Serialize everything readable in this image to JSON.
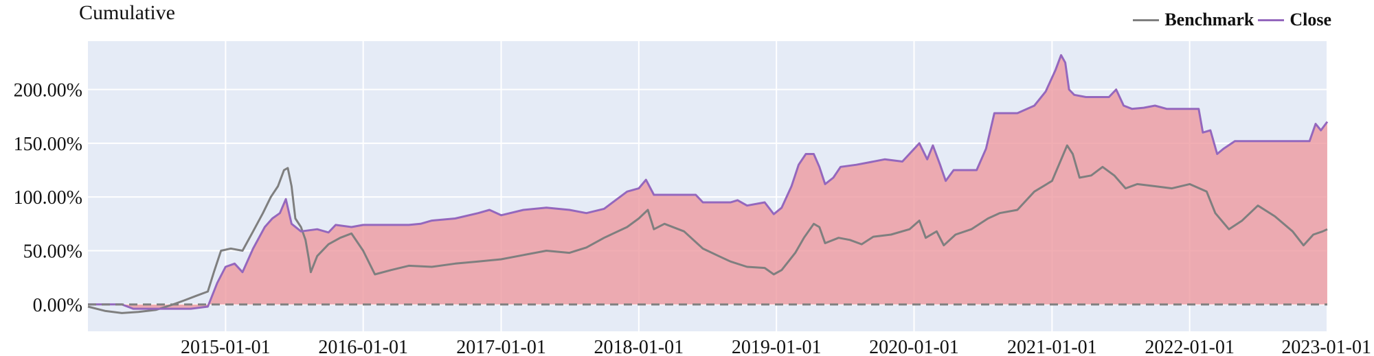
{
  "chart_data": {
    "type": "area",
    "title": "Cumulative",
    "x_ticks": [
      "2015-01-01",
      "2016-01-01",
      "2017-01-01",
      "2018-01-01",
      "2019-01-01",
      "2020-01-01",
      "2021-01-01",
      "2022-01-01",
      "2023-01-01"
    ],
    "y_ticks": [
      "0.00%",
      "50.00%",
      "100.00%",
      "150.00%",
      "200.00%"
    ],
    "y_tick_values": [
      0,
      50,
      100,
      150,
      200
    ],
    "xlim": [
      "2014-01-01",
      "2023-01-01"
    ],
    "ylim": [
      -25,
      245
    ],
    "grid": true,
    "legend_position": "top-right",
    "series": [
      {
        "name": "Benchmark",
        "color": "#7f7f7f",
        "points": [
          [
            "2014-01-01",
            -2
          ],
          [
            "2014-02-15",
            -6
          ],
          [
            "2014-04-01",
            -8
          ],
          [
            "2014-05-15",
            -7
          ],
          [
            "2014-07-01",
            -5
          ],
          [
            "2014-08-15",
            0
          ],
          [
            "2014-09-15",
            4
          ],
          [
            "2014-10-15",
            8
          ],
          [
            "2014-11-15",
            12
          ],
          [
            "2014-12-01",
            30
          ],
          [
            "2014-12-20",
            50
          ],
          [
            "2015-01-15",
            52
          ],
          [
            "2015-02-15",
            50
          ],
          [
            "2015-03-15",
            68
          ],
          [
            "2015-04-10",
            85
          ],
          [
            "2015-05-01",
            100
          ],
          [
            "2015-05-20",
            110
          ],
          [
            "2015-06-05",
            125
          ],
          [
            "2015-06-15",
            127
          ],
          [
            "2015-06-25",
            110
          ],
          [
            "2015-07-05",
            80
          ],
          [
            "2015-07-20",
            72
          ],
          [
            "2015-08-01",
            60
          ],
          [
            "2015-08-10",
            42
          ],
          [
            "2015-08-15",
            30
          ],
          [
            "2015-09-01",
            45
          ],
          [
            "2015-10-01",
            56
          ],
          [
            "2015-11-01",
            62
          ],
          [
            "2015-12-01",
            66
          ],
          [
            "2016-01-01",
            50
          ],
          [
            "2016-02-01",
            28
          ],
          [
            "2016-03-15",
            32
          ],
          [
            "2016-05-01",
            36
          ],
          [
            "2016-07-01",
            35
          ],
          [
            "2016-09-01",
            38
          ],
          [
            "2016-11-01",
            40
          ],
          [
            "2017-01-01",
            42
          ],
          [
            "2017-03-01",
            46
          ],
          [
            "2017-05-01",
            50
          ],
          [
            "2017-07-01",
            48
          ],
          [
            "2017-08-15",
            53
          ],
          [
            "2017-10-01",
            62
          ],
          [
            "2017-12-01",
            72
          ],
          [
            "2018-01-01",
            80
          ],
          [
            "2018-01-25",
            88
          ],
          [
            "2018-02-10",
            70
          ],
          [
            "2018-03-10",
            75
          ],
          [
            "2018-05-01",
            68
          ],
          [
            "2018-06-20",
            52
          ],
          [
            "2018-08-01",
            45
          ],
          [
            "2018-09-01",
            40
          ],
          [
            "2018-10-15",
            35
          ],
          [
            "2018-12-01",
            34
          ],
          [
            "2018-12-25",
            28
          ],
          [
            "2019-01-15",
            32
          ],
          [
            "2019-02-20",
            48
          ],
          [
            "2019-03-15",
            62
          ],
          [
            "2019-04-10",
            75
          ],
          [
            "2019-04-25",
            72
          ],
          [
            "2019-05-10",
            57
          ],
          [
            "2019-06-15",
            62
          ],
          [
            "2019-07-15",
            60
          ],
          [
            "2019-08-15",
            56
          ],
          [
            "2019-09-15",
            63
          ],
          [
            "2019-11-01",
            65
          ],
          [
            "2019-12-20",
            70
          ],
          [
            "2020-01-15",
            78
          ],
          [
            "2020-02-01",
            62
          ],
          [
            "2020-03-01",
            68
          ],
          [
            "2020-03-20",
            55
          ],
          [
            "2020-04-20",
            65
          ],
          [
            "2020-06-01",
            70
          ],
          [
            "2020-07-15",
            80
          ],
          [
            "2020-08-15",
            85
          ],
          [
            "2020-10-01",
            88
          ],
          [
            "2020-11-15",
            105
          ],
          [
            "2021-01-01",
            115
          ],
          [
            "2021-02-10",
            148
          ],
          [
            "2021-02-25",
            140
          ],
          [
            "2021-03-15",
            118
          ],
          [
            "2021-04-15",
            120
          ],
          [
            "2021-05-15",
            128
          ],
          [
            "2021-06-15",
            120
          ],
          [
            "2021-07-15",
            108
          ],
          [
            "2021-08-15",
            112
          ],
          [
            "2021-10-01",
            110
          ],
          [
            "2021-11-15",
            108
          ],
          [
            "2022-01-01",
            112
          ],
          [
            "2022-02-15",
            105
          ],
          [
            "2022-03-10",
            85
          ],
          [
            "2022-04-15",
            70
          ],
          [
            "2022-05-20",
            78
          ],
          [
            "2022-07-01",
            92
          ],
          [
            "2022-08-15",
            82
          ],
          [
            "2022-10-01",
            68
          ],
          [
            "2022-10-30",
            55
          ],
          [
            "2022-11-25",
            65
          ],
          [
            "2022-12-20",
            68
          ],
          [
            "2023-01-01",
            70
          ]
        ]
      },
      {
        "name": "Close",
        "color": "#9467bd",
        "points": [
          [
            "2014-01-01",
            0
          ],
          [
            "2014-04-01",
            0
          ],
          [
            "2014-05-01",
            -4
          ],
          [
            "2014-10-01",
            -4
          ],
          [
            "2014-11-15",
            -2
          ],
          [
            "2014-12-10",
            20
          ],
          [
            "2015-01-01",
            35
          ],
          [
            "2015-01-25",
            38
          ],
          [
            "2015-02-15",
            30
          ],
          [
            "2015-03-15",
            52
          ],
          [
            "2015-04-15",
            72
          ],
          [
            "2015-05-05",
            80
          ],
          [
            "2015-05-25",
            85
          ],
          [
            "2015-06-10",
            98
          ],
          [
            "2015-06-25",
            75
          ],
          [
            "2015-07-20",
            68
          ],
          [
            "2015-09-01",
            70
          ],
          [
            "2015-10-01",
            67
          ],
          [
            "2015-10-20",
            74
          ],
          [
            "2015-12-01",
            72
          ],
          [
            "2016-01-01",
            74
          ],
          [
            "2016-05-01",
            74
          ],
          [
            "2016-06-01",
            75
          ],
          [
            "2016-07-01",
            78
          ],
          [
            "2016-09-01",
            80
          ],
          [
            "2016-11-01",
            85
          ],
          [
            "2016-12-01",
            88
          ],
          [
            "2017-01-01",
            83
          ],
          [
            "2017-03-01",
            88
          ],
          [
            "2017-05-01",
            90
          ],
          [
            "2017-07-01",
            88
          ],
          [
            "2017-08-15",
            85
          ],
          [
            "2017-10-01",
            89
          ],
          [
            "2017-12-01",
            105
          ],
          [
            "2018-01-01",
            108
          ],
          [
            "2018-01-20",
            116
          ],
          [
            "2018-02-10",
            102
          ],
          [
            "2018-06-01",
            102
          ],
          [
            "2018-06-20",
            95
          ],
          [
            "2018-09-01",
            95
          ],
          [
            "2018-09-20",
            97
          ],
          [
            "2018-10-15",
            92
          ],
          [
            "2018-12-01",
            95
          ],
          [
            "2018-12-25",
            84
          ],
          [
            "2019-01-15",
            90
          ],
          [
            "2019-02-10",
            110
          ],
          [
            "2019-03-01",
            130
          ],
          [
            "2019-03-20",
            140
          ],
          [
            "2019-04-10",
            140
          ],
          [
            "2019-04-25",
            128
          ],
          [
            "2019-05-10",
            112
          ],
          [
            "2019-06-01",
            118
          ],
          [
            "2019-06-20",
            128
          ],
          [
            "2019-08-01",
            130
          ],
          [
            "2019-09-01",
            132
          ],
          [
            "2019-10-15",
            135
          ],
          [
            "2019-12-01",
            133
          ],
          [
            "2020-01-15",
            150
          ],
          [
            "2020-02-05",
            135
          ],
          [
            "2020-02-20",
            148
          ],
          [
            "2020-03-10",
            130
          ],
          [
            "2020-03-25",
            115
          ],
          [
            "2020-04-15",
            125
          ],
          [
            "2020-06-15",
            125
          ],
          [
            "2020-07-10",
            145
          ],
          [
            "2020-08-01",
            178
          ],
          [
            "2020-10-01",
            178
          ],
          [
            "2020-11-15",
            185
          ],
          [
            "2020-12-15",
            198
          ],
          [
            "2021-01-10",
            218
          ],
          [
            "2021-01-25",
            232
          ],
          [
            "2021-02-05",
            225
          ],
          [
            "2021-02-15",
            200
          ],
          [
            "2021-03-01",
            195
          ],
          [
            "2021-04-01",
            193
          ],
          [
            "2021-06-01",
            193
          ],
          [
            "2021-06-20",
            200
          ],
          [
            "2021-07-10",
            185
          ],
          [
            "2021-08-01",
            182
          ],
          [
            "2021-09-01",
            183
          ],
          [
            "2021-10-01",
            185
          ],
          [
            "2021-11-01",
            182
          ],
          [
            "2022-01-01",
            182
          ],
          [
            "2022-01-25",
            182
          ],
          [
            "2022-02-05",
            160
          ],
          [
            "2022-02-25",
            162
          ],
          [
            "2022-03-15",
            140
          ],
          [
            "2022-04-01",
            145
          ],
          [
            "2022-05-01",
            152
          ],
          [
            "2022-07-01",
            152
          ],
          [
            "2022-09-01",
            152
          ],
          [
            "2022-10-15",
            152
          ],
          [
            "2022-11-15",
            152
          ],
          [
            "2022-12-01",
            168
          ],
          [
            "2022-12-15",
            162
          ],
          [
            "2023-01-01",
            170
          ]
        ]
      }
    ],
    "fill": {
      "between": "Close and 0.00%",
      "color": "#ee9aa0"
    },
    "baseline": {
      "value": 0,
      "color": "#808080",
      "style": "dashed"
    }
  }
}
